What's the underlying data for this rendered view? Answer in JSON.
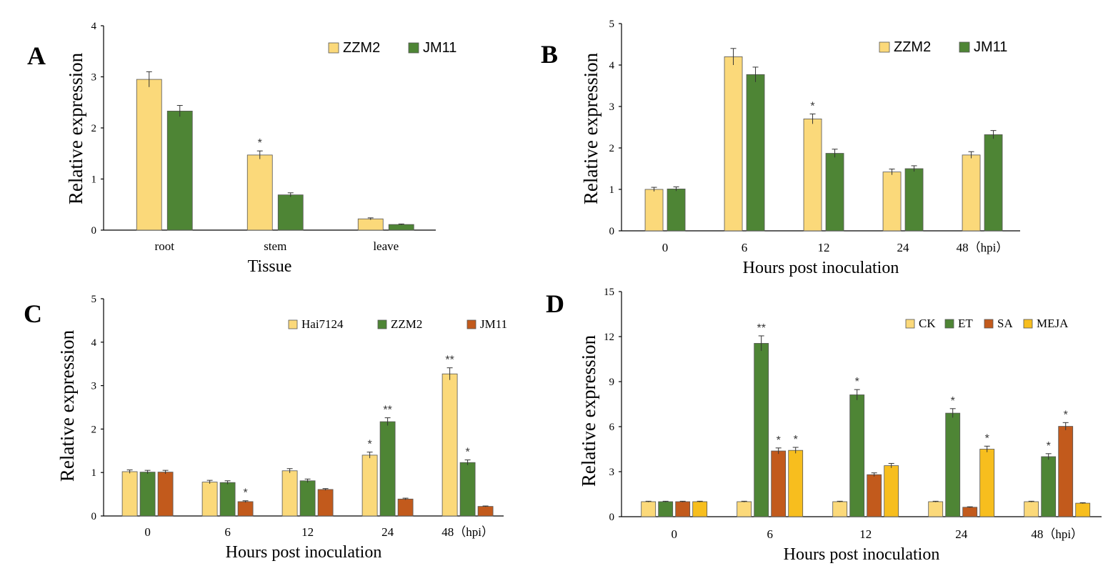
{
  "chart_data": [
    {
      "type": "bar",
      "panel": "A",
      "ylabel": "Relative expression",
      "xlabel": "Tissue",
      "ylim": [
        0,
        4
      ],
      "yticks": [
        0,
        1,
        2,
        3,
        4
      ],
      "categories": [
        "root",
        "stem",
        "leave"
      ],
      "series": [
        {
          "name": "ZZM2",
          "color": "#FBD97A",
          "values": [
            2.95,
            1.47,
            0.22
          ],
          "errors": [
            0.15,
            0.08,
            0.02
          ]
        },
        {
          "name": "JM11",
          "color": "#4E8535",
          "values": [
            2.33,
            0.69,
            0.11
          ],
          "errors": [
            0.11,
            0.04,
            0.01
          ]
        }
      ],
      "significance": [
        {
          "category": 1,
          "series": 0,
          "mark": "*"
        }
      ],
      "legend": "top-right"
    },
    {
      "type": "bar",
      "panel": "B",
      "ylabel": "Relative expression",
      "xlabel": "Hours post inoculation",
      "ylim": [
        0,
        5
      ],
      "yticks": [
        0,
        1,
        2,
        3,
        4,
        5
      ],
      "categories": [
        "0",
        "6",
        "12",
        "24",
        "48（hpi）"
      ],
      "series": [
        {
          "name": "ZZM2",
          "color": "#FBD97A",
          "values": [
            1.0,
            4.2,
            2.7,
            1.42,
            1.83
          ],
          "errors": [
            0.05,
            0.2,
            0.12,
            0.07,
            0.08
          ]
        },
        {
          "name": "JM11",
          "color": "#4E8535",
          "values": [
            1.01,
            3.77,
            1.87,
            1.5,
            2.32
          ],
          "errors": [
            0.05,
            0.18,
            0.1,
            0.07,
            0.1
          ]
        }
      ],
      "significance": [
        {
          "category": 2,
          "series": 0,
          "mark": "*"
        }
      ],
      "legend": "top-right"
    },
    {
      "type": "bar",
      "panel": "C",
      "ylabel": "Relative expression",
      "xlabel": "Hours post inoculation",
      "ylim": [
        0,
        5
      ],
      "yticks": [
        0,
        1,
        2,
        3,
        4,
        5
      ],
      "categories": [
        "0",
        "6",
        "12",
        "24",
        "48（hpi）"
      ],
      "series": [
        {
          "name": "Hai7124",
          "color": "#FBD97A",
          "values": [
            1.02,
            0.78,
            1.04,
            1.4,
            3.27
          ],
          "errors": [
            0.04,
            0.04,
            0.05,
            0.07,
            0.14
          ]
        },
        {
          "name": "ZZM2",
          "color": "#4E8535",
          "values": [
            1.01,
            0.77,
            0.81,
            2.17,
            1.23
          ],
          "errors": [
            0.04,
            0.04,
            0.04,
            0.09,
            0.06
          ]
        },
        {
          "name": "JM11",
          "color": "#C25A1C",
          "values": [
            1.01,
            0.33,
            0.61,
            0.39,
            0.22
          ],
          "errors": [
            0.04,
            0.02,
            0.02,
            0.02,
            0.01
          ]
        }
      ],
      "significance": [
        {
          "category": 1,
          "series": 2,
          "mark": "*"
        },
        {
          "category": 3,
          "series": 0,
          "mark": "*"
        },
        {
          "category": 3,
          "series": 1,
          "mark": "**"
        },
        {
          "category": 4,
          "series": 0,
          "mark": "**"
        },
        {
          "category": 4,
          "series": 1,
          "mark": "*"
        }
      ],
      "legend": "top-right"
    },
    {
      "type": "bar",
      "panel": "D",
      "ylabel": "Relative expression",
      "xlabel": "Hours post inoculation",
      "ylim": [
        0,
        15
      ],
      "yticks": [
        0,
        3,
        6,
        9,
        12,
        15
      ],
      "categories": [
        "0",
        "6",
        "12",
        "24",
        "48（hpi）"
      ],
      "series": [
        {
          "name": "CK",
          "color": "#FBD97A",
          "values": [
            1.0,
            1.0,
            1.0,
            1.0,
            1.0
          ],
          "errors": [
            0.03,
            0.03,
            0.03,
            0.03,
            0.03
          ]
        },
        {
          "name": "ET",
          "color": "#4E8535",
          "values": [
            1.0,
            11.55,
            8.12,
            6.9,
            4.0
          ],
          "errors": [
            0.03,
            0.5,
            0.35,
            0.3,
            0.2
          ]
        },
        {
          "name": "SA",
          "color": "#C25A1C",
          "values": [
            1.0,
            4.38,
            2.8,
            0.63,
            6.02
          ],
          "errors": [
            0.03,
            0.2,
            0.12,
            0.03,
            0.25
          ]
        },
        {
          "name": "MEJA",
          "color": "#F7BE1E",
          "values": [
            1.0,
            4.42,
            3.4,
            4.5,
            0.9
          ],
          "errors": [
            0.03,
            0.2,
            0.15,
            0.2,
            0.03
          ]
        }
      ],
      "significance": [
        {
          "category": 1,
          "series": 1,
          "mark": "**"
        },
        {
          "category": 1,
          "series": 2,
          "mark": "*"
        },
        {
          "category": 1,
          "series": 3,
          "mark": "*"
        },
        {
          "category": 2,
          "series": 1,
          "mark": "*"
        },
        {
          "category": 3,
          "series": 1,
          "mark": "*"
        },
        {
          "category": 3,
          "series": 3,
          "mark": "*"
        },
        {
          "category": 4,
          "series": 1,
          "mark": "*"
        },
        {
          "category": 4,
          "series": 2,
          "mark": "*"
        }
      ],
      "legend": "top-right"
    }
  ]
}
